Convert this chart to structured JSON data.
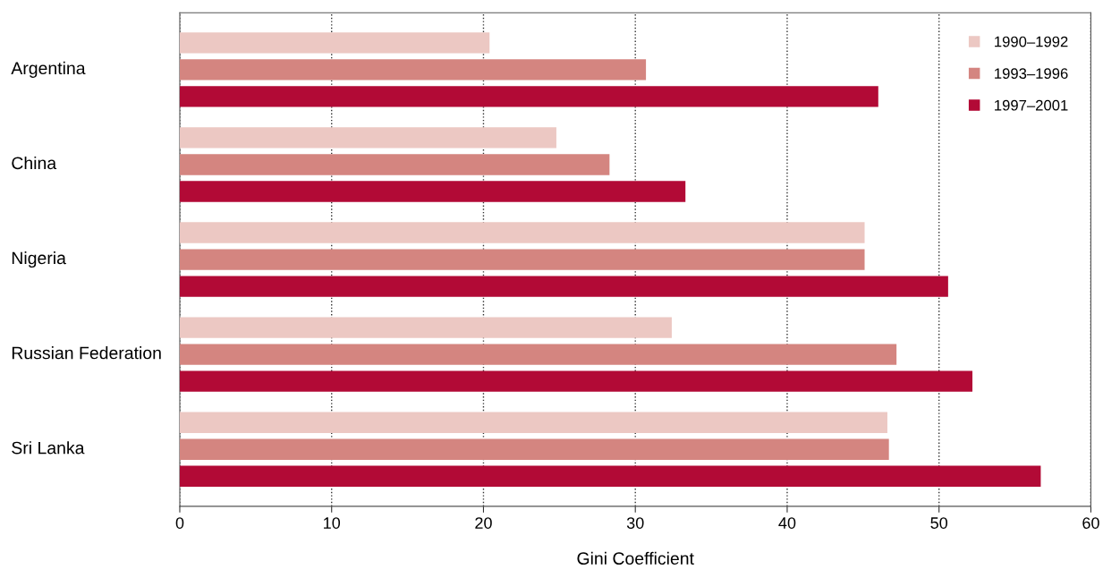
{
  "chart_data": {
    "type": "bar",
    "orientation": "horizontal",
    "xlabel": "Gini Coefficient",
    "categories": [
      "Argentina",
      "China",
      "Nigeria",
      "Russian Federation",
      "Sri Lanka"
    ],
    "series": [
      {
        "name": "1990–1992",
        "color": "#ecc8c3",
        "values": [
          20.4,
          24.8,
          45.1,
          32.4,
          46.6
        ]
      },
      {
        "name": "1993–1996",
        "color": "#d48580",
        "values": [
          30.7,
          28.3,
          45.1,
          47.2,
          46.7
        ]
      },
      {
        "name": "1997–2001",
        "color": "#b20a36",
        "values": [
          46.0,
          33.3,
          50.6,
          52.2,
          56.7
        ]
      }
    ],
    "xlim": [
      0,
      60
    ],
    "xticks": [
      0,
      10,
      20,
      30,
      40,
      50,
      60
    ],
    "grid": "x",
    "legend": "top right"
  }
}
